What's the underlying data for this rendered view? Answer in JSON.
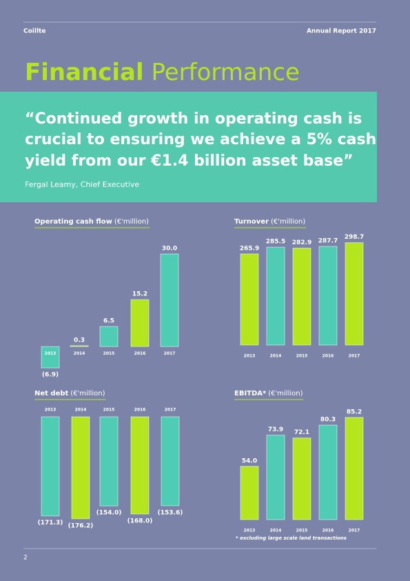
{
  "header": {
    "left": "Coillte",
    "right": "Annual Report 2017"
  },
  "title": {
    "bold": "Financial",
    "light": "Performance"
  },
  "quote": {
    "lines": [
      "“Continued growth in operating cash is",
      "crucial to ensuring we achieve a 5% cash",
      "yield from our €1.4 billion asset base”"
    ],
    "attribution": "Fergal Leamy, Chief Executive"
  },
  "footnote": "* excluding large scale land transactions",
  "page_number": "2",
  "chart_data": [
    {
      "type": "bar",
      "title": "Operating cash flow",
      "unit": "(€'million)",
      "categories": [
        "2013",
        "2014",
        "2015",
        "2016",
        "2017"
      ],
      "values": [
        -6.9,
        0.3,
        6.5,
        15.2,
        30.0
      ],
      "value_labels": [
        "(6.9)",
        "0.3",
        "6.5",
        "15.2",
        "30.0"
      ],
      "colors": [
        "#4ecdb4",
        "#b5e61d",
        "#4ecdb4",
        "#b5e61d",
        "#4ecdb4"
      ],
      "ylim": [
        -10,
        30
      ]
    },
    {
      "type": "bar",
      "title": "Turnover",
      "unit": "(€'million)",
      "categories": [
        "2013",
        "2014",
        "2015",
        "2016",
        "2017"
      ],
      "values": [
        265.9,
        285.5,
        282.9,
        287.7,
        298.7
      ],
      "value_labels": [
        "265.9",
        "285.5",
        "282.9",
        "287.7",
        "298.7"
      ],
      "colors": [
        "#b5e61d",
        "#4ecdb4",
        "#b5e61d",
        "#4ecdb4",
        "#b5e61d"
      ],
      "ylim": [
        0,
        300
      ]
    },
    {
      "type": "bar",
      "title": "Net debt",
      "unit": "(€'million)",
      "categories": [
        "2013",
        "2014",
        "2015",
        "2016",
        "2017"
      ],
      "values": [
        -171.3,
        -176.2,
        -154.0,
        -168.0,
        -153.6
      ],
      "value_labels": [
        "(171.3)",
        "(176.2)",
        "(154.0)",
        "(168.0)",
        "(153.6)"
      ],
      "colors": [
        "#4ecdb4",
        "#b5e61d",
        "#4ecdb4",
        "#b5e61d",
        "#4ecdb4"
      ],
      "ylim": [
        -180,
        0
      ]
    },
    {
      "type": "bar",
      "title": "EBITDA*",
      "unit": "(€'million)",
      "categories": [
        "2013",
        "2014",
        "2015",
        "2016",
        "2017"
      ],
      "values": [
        54.0,
        73.9,
        72.1,
        80.3,
        85.2
      ],
      "value_labels": [
        "54.0",
        "73.9",
        "72.1",
        "80.3",
        "85.2"
      ],
      "colors": [
        "#b5e61d",
        "#4ecdb4",
        "#b5e61d",
        "#4ecdb4",
        "#b5e61d"
      ],
      "ylim": [
        20,
        90
      ]
    }
  ]
}
